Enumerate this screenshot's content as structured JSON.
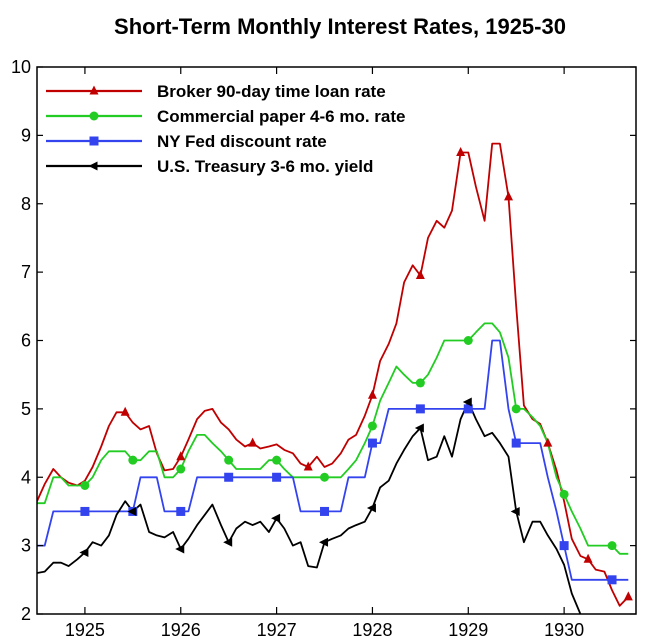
{
  "chart_data": {
    "type": "line",
    "title": "Short-Term Monthly Interest Rates, 1925-30",
    "xlabel": "",
    "ylabel": "",
    "xlim": [
      1924.5,
      1930.75
    ],
    "ylim": [
      2,
      10
    ],
    "x_ticks": [
      1925,
      1926,
      1927,
      1928,
      1929,
      1930
    ],
    "x_tick_labels": [
      "1925",
      "1926",
      "1927",
      "1928",
      "1929",
      "1930"
    ],
    "y_ticks": [
      2,
      3,
      4,
      5,
      6,
      7,
      8,
      9,
      10
    ],
    "y_tick_labels": [
      "2",
      "3",
      "4",
      "5",
      "6",
      "7",
      "8",
      "9",
      "10"
    ],
    "grid": false,
    "legend_position": "top-left",
    "series": [
      {
        "name": "Broker 90-day time loan rate",
        "color": "#c00000",
        "marker": "triangle-up",
        "x": [
          1924.5,
          1924.58,
          1924.67,
          1924.75,
          1924.83,
          1924.92,
          1925.0,
          1925.08,
          1925.17,
          1925.25,
          1925.33,
          1925.42,
          1925.5,
          1925.58,
          1925.67,
          1925.75,
          1925.83,
          1925.92,
          1926.0,
          1926.08,
          1926.17,
          1926.25,
          1926.33,
          1926.42,
          1926.5,
          1926.58,
          1926.67,
          1926.75,
          1926.83,
          1926.92,
          1927.0,
          1927.08,
          1927.17,
          1927.25,
          1927.33,
          1927.42,
          1927.5,
          1927.58,
          1927.67,
          1927.75,
          1927.83,
          1927.92,
          1928.0,
          1928.08,
          1928.17,
          1928.25,
          1928.33,
          1928.42,
          1928.5,
          1928.58,
          1928.67,
          1928.75,
          1928.83,
          1928.92,
          1929.0,
          1929.08,
          1929.17,
          1929.25,
          1929.33,
          1929.42,
          1929.5,
          1929.58,
          1929.67,
          1929.75,
          1929.83,
          1929.92,
          1930.0,
          1930.08,
          1930.17,
          1930.25,
          1930.33,
          1930.42,
          1930.5,
          1930.58,
          1930.67
        ],
        "values": [
          3.65,
          3.9,
          4.12,
          4.0,
          3.92,
          3.88,
          3.95,
          4.15,
          4.45,
          4.75,
          4.95,
          4.95,
          4.8,
          4.7,
          4.75,
          4.35,
          4.1,
          4.12,
          4.3,
          4.55,
          4.85,
          4.97,
          5.0,
          4.8,
          4.7,
          4.55,
          4.45,
          4.5,
          4.42,
          4.45,
          4.48,
          4.4,
          4.35,
          4.2,
          4.15,
          4.3,
          4.15,
          4.2,
          4.35,
          4.55,
          4.62,
          4.9,
          5.2,
          5.7,
          5.95,
          6.25,
          6.85,
          7.1,
          6.95,
          7.5,
          7.75,
          7.65,
          7.9,
          8.75,
          8.75,
          8.25,
          7.75,
          8.88,
          8.88,
          8.1,
          6.5,
          5.05,
          4.85,
          4.78,
          4.5,
          4.1,
          3.65,
          3.1,
          2.85,
          2.8,
          2.65,
          2.62,
          2.35,
          2.12,
          2.25
        ],
        "marker_x": [
          1925.42,
          1926.0,
          1926.75,
          1927.33,
          1928.0,
          1928.5,
          1928.92,
          1929.42,
          1929.83,
          1930.25,
          1930.67
        ]
      },
      {
        "name": "Commercial paper 4-6 mo. rate",
        "color": "#22cc22",
        "marker": "circle",
        "x": [
          1924.5,
          1924.58,
          1924.67,
          1924.75,
          1924.83,
          1924.92,
          1925.0,
          1925.08,
          1925.17,
          1925.25,
          1925.33,
          1925.42,
          1925.5,
          1925.58,
          1925.67,
          1925.75,
          1925.83,
          1925.92,
          1926.0,
          1926.08,
          1926.17,
          1926.25,
          1926.33,
          1926.42,
          1926.5,
          1926.58,
          1926.67,
          1926.75,
          1926.83,
          1926.92,
          1927.0,
          1927.08,
          1927.17,
          1927.25,
          1927.33,
          1927.42,
          1927.5,
          1927.58,
          1927.67,
          1927.75,
          1927.83,
          1927.92,
          1928.0,
          1928.08,
          1928.17,
          1928.25,
          1928.33,
          1928.42,
          1928.5,
          1928.58,
          1928.67,
          1928.75,
          1928.83,
          1928.92,
          1929.0,
          1929.08,
          1929.17,
          1929.25,
          1929.33,
          1929.42,
          1929.5,
          1929.58,
          1929.67,
          1929.75,
          1929.83,
          1929.92,
          1930.0,
          1930.08,
          1930.17,
          1930.25,
          1930.33,
          1930.42,
          1930.5,
          1930.58,
          1930.67
        ],
        "values": [
          3.62,
          3.62,
          4.0,
          4.0,
          3.88,
          3.88,
          3.88,
          4.0,
          4.25,
          4.38,
          4.38,
          4.38,
          4.25,
          4.25,
          4.38,
          4.38,
          4.0,
          4.0,
          4.12,
          4.38,
          4.62,
          4.62,
          4.5,
          4.38,
          4.25,
          4.12,
          4.12,
          4.12,
          4.12,
          4.25,
          4.25,
          4.12,
          4.0,
          4.0,
          4.0,
          4.0,
          4.0,
          4.0,
          4.0,
          4.12,
          4.25,
          4.5,
          4.75,
          5.12,
          5.38,
          5.62,
          5.5,
          5.38,
          5.38,
          5.5,
          5.75,
          6.0,
          6.0,
          6.0,
          6.0,
          6.12,
          6.25,
          6.25,
          6.12,
          5.75,
          5.0,
          5.0,
          4.88,
          4.75,
          4.5,
          4.0,
          3.75,
          3.5,
          3.25,
          3.0,
          3.0,
          3.0,
          3.0,
          2.88,
          2.88
        ],
        "marker_x": [
          1925.0,
          1925.5,
          1926.0,
          1926.5,
          1927.0,
          1927.5,
          1928.0,
          1928.5,
          1929.0,
          1929.5,
          1930.0,
          1930.5
        ]
      },
      {
        "name": "NY Fed discount rate",
        "color": "#3344ee",
        "marker": "square",
        "x": [
          1924.5,
          1924.58,
          1924.67,
          1924.75,
          1924.83,
          1924.92,
          1925.0,
          1925.08,
          1925.17,
          1925.25,
          1925.33,
          1925.42,
          1925.5,
          1925.58,
          1925.67,
          1925.75,
          1925.83,
          1925.92,
          1926.0,
          1926.08,
          1926.17,
          1926.25,
          1926.33,
          1926.42,
          1926.5,
          1926.58,
          1926.67,
          1926.75,
          1926.83,
          1926.92,
          1927.0,
          1927.08,
          1927.17,
          1927.25,
          1927.33,
          1927.42,
          1927.5,
          1927.58,
          1927.67,
          1927.75,
          1927.83,
          1927.92,
          1928.0,
          1928.08,
          1928.17,
          1928.25,
          1928.33,
          1928.42,
          1928.5,
          1928.58,
          1928.67,
          1928.75,
          1928.83,
          1928.92,
          1929.0,
          1929.08,
          1929.17,
          1929.25,
          1929.33,
          1929.42,
          1929.5,
          1929.58,
          1929.67,
          1929.75,
          1929.83,
          1929.92,
          1930.0,
          1930.08,
          1930.17,
          1930.25,
          1930.33,
          1930.42,
          1930.5,
          1930.58,
          1930.67
        ],
        "values": [
          3.0,
          3.0,
          3.5,
          3.5,
          3.5,
          3.5,
          3.5,
          3.5,
          3.5,
          3.5,
          3.5,
          3.5,
          3.5,
          4.0,
          4.0,
          4.0,
          3.5,
          3.5,
          3.5,
          3.5,
          4.0,
          4.0,
          4.0,
          4.0,
          4.0,
          4.0,
          4.0,
          4.0,
          4.0,
          4.0,
          4.0,
          4.0,
          4.0,
          3.5,
          3.5,
          3.5,
          3.5,
          3.5,
          3.5,
          4.0,
          4.0,
          4.0,
          4.5,
          4.5,
          5.0,
          5.0,
          5.0,
          5.0,
          5.0,
          5.0,
          5.0,
          5.0,
          5.0,
          5.0,
          5.0,
          5.0,
          5.0,
          6.0,
          6.0,
          5.0,
          4.5,
          4.5,
          4.5,
          4.5,
          4.0,
          3.5,
          3.0,
          2.5,
          2.5,
          2.5,
          2.5,
          2.5,
          2.5,
          2.5,
          2.5
        ],
        "marker_x": [
          1925.0,
          1925.5,
          1926.0,
          1926.5,
          1927.0,
          1927.5,
          1928.0,
          1928.5,
          1929.0,
          1929.5,
          1930.0,
          1930.5
        ]
      },
      {
        "name": "U.S. Treasury 3-6 mo. yield",
        "color": "#000000",
        "marker": "triangle-left",
        "x": [
          1924.5,
          1924.58,
          1924.67,
          1924.75,
          1924.83,
          1924.92,
          1925.0,
          1925.08,
          1925.17,
          1925.25,
          1925.33,
          1925.42,
          1925.5,
          1925.58,
          1925.67,
          1925.75,
          1925.83,
          1925.92,
          1926.0,
          1926.08,
          1926.17,
          1926.25,
          1926.33,
          1926.42,
          1926.5,
          1926.58,
          1926.67,
          1926.75,
          1926.83,
          1926.92,
          1927.0,
          1927.08,
          1927.17,
          1927.25,
          1927.33,
          1927.42,
          1927.5,
          1927.58,
          1927.67,
          1927.75,
          1927.83,
          1927.92,
          1928.0,
          1928.08,
          1928.17,
          1928.25,
          1928.33,
          1928.42,
          1928.5,
          1928.58,
          1928.67,
          1928.75,
          1928.83,
          1928.92,
          1929.0,
          1929.08,
          1929.17,
          1929.25,
          1929.33,
          1929.42,
          1929.5,
          1929.58,
          1929.67,
          1929.75,
          1929.83,
          1929.92,
          1930.0,
          1930.08,
          1930.17
        ],
        "values": [
          2.6,
          2.62,
          2.75,
          2.75,
          2.7,
          2.8,
          2.9,
          3.05,
          3.0,
          3.15,
          3.45,
          3.65,
          3.5,
          3.6,
          3.2,
          3.15,
          3.12,
          3.2,
          2.95,
          3.1,
          3.3,
          3.45,
          3.6,
          3.3,
          3.05,
          3.25,
          3.35,
          3.3,
          3.35,
          3.2,
          3.4,
          3.25,
          3.0,
          3.05,
          2.7,
          2.68,
          3.05,
          3.1,
          3.15,
          3.25,
          3.3,
          3.35,
          3.55,
          3.85,
          3.95,
          4.2,
          4.4,
          4.6,
          4.72,
          4.25,
          4.3,
          4.6,
          4.3,
          4.85,
          5.1,
          4.85,
          4.6,
          4.65,
          4.5,
          4.3,
          3.5,
          3.05,
          3.35,
          3.35,
          3.15,
          2.95,
          2.72,
          2.3,
          2.0
        ],
        "marker_x": [
          1925.0,
          1925.5,
          1926.0,
          1926.5,
          1927.0,
          1927.5,
          1928.0,
          1928.5,
          1929.0,
          1929.5
        ]
      }
    ]
  }
}
